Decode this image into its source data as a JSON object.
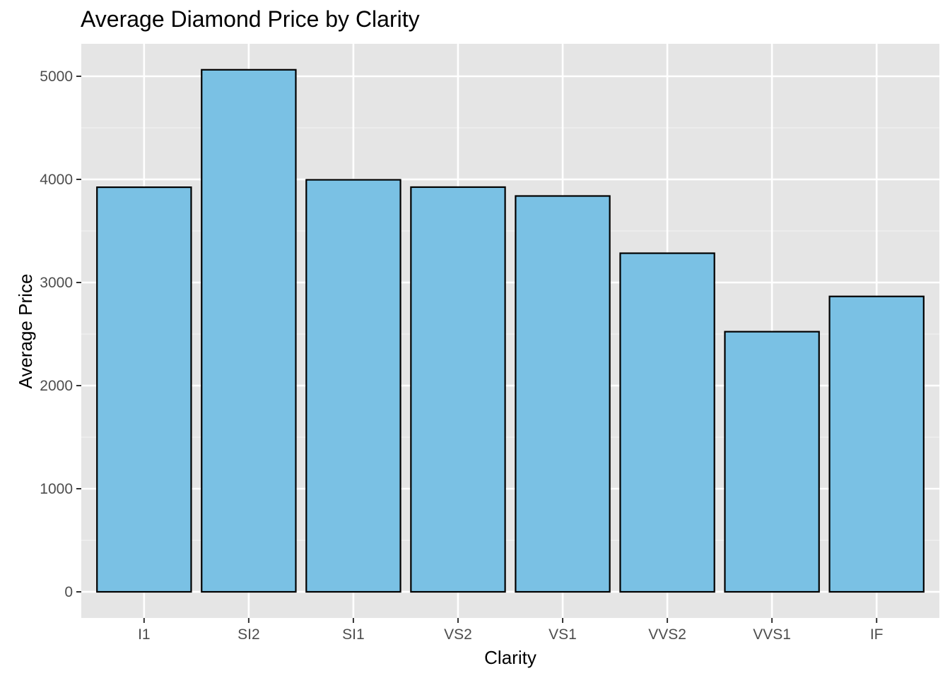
{
  "chart_data": {
    "type": "bar",
    "title": "Average Diamond Price by Clarity",
    "xlabel": "Clarity",
    "ylabel": "Average Price",
    "categories": [
      "I1",
      "SI2",
      "SI1",
      "VS2",
      "VS1",
      "VVS2",
      "VVS1",
      "IF"
    ],
    "values": [
      3924,
      5063,
      3996,
      3925,
      3839,
      3284,
      2523,
      2865
    ],
    "ylim": [
      0,
      5300
    ],
    "yticks": [
      "0",
      "1000",
      "2000",
      "3000",
      "4000",
      "5000"
    ],
    "grid": true,
    "legend": "none",
    "colors": {
      "bar_fill": "#7AC1E4",
      "bar_stroke": "#000000",
      "panel_background": "#E5E5E5",
      "grid_major": "#FFFFFF",
      "grid_minor": "#F2F2F2",
      "tick_text": "#4D4D4D",
      "tick_mark": "#333333"
    }
  }
}
